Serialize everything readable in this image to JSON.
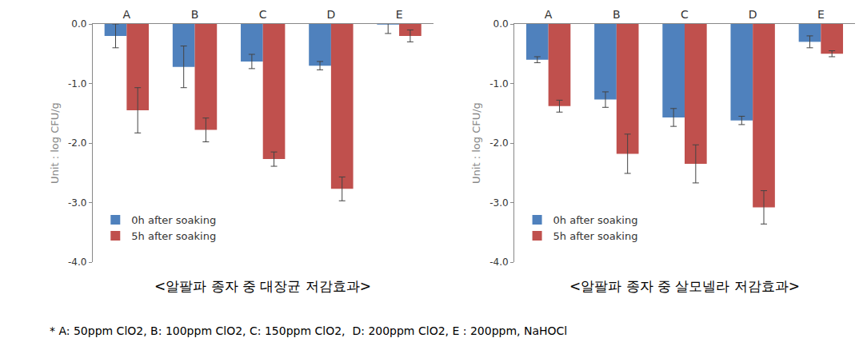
{
  "chart_data": [
    {
      "type": "bar",
      "title": "<알팔파 종자 중 대장균 저감효과>",
      "y_label": "Unit : log CFU/g",
      "categories": [
        "A",
        "B",
        "C",
        "D",
        "E"
      ],
      "series": [
        {
          "name": "0h after soaking",
          "color": "#4f81bd",
          "values": [
            -0.2,
            -0.72,
            -0.63,
            -0.7,
            -0.01
          ],
          "errors": [
            0.2,
            0.35,
            0.12,
            0.07,
            0.15
          ]
        },
        {
          "name": "5h after soaking",
          "color": "#c0504d",
          "values": [
            -1.45,
            -1.78,
            -2.27,
            -2.77,
            -0.2
          ],
          "errors": [
            0.38,
            0.2,
            0.12,
            0.2,
            0.1
          ]
        }
      ],
      "ylim": [
        -4,
        0
      ],
      "yticks": [
        {
          "value": -4,
          "label": "-4.0"
        },
        {
          "value": -3,
          "label": "-3.0"
        },
        {
          "value": -2,
          "label": "-2.0"
        },
        {
          "value": -1,
          "label": "-1.0"
        },
        {
          "value": 0,
          "label": "0.0"
        }
      ],
      "grid": false,
      "legend": "lower left"
    },
    {
      "type": "bar",
      "title": "<알팔파 종자 중 살모넬라 저감효과>",
      "y_label": "Unit : log CFU/g",
      "categories": [
        "A",
        "B",
        "C",
        "D",
        "E"
      ],
      "series": [
        {
          "name": "0h after soaking",
          "color": "#4f81bd",
          "values": [
            -0.6,
            -1.27,
            -1.57,
            -1.62,
            -0.3
          ],
          "errors": [
            0.05,
            0.13,
            0.15,
            0.07,
            0.1
          ]
        },
        {
          "name": "5h after soaking",
          "color": "#c0504d",
          "values": [
            -1.38,
            -2.18,
            -2.35,
            -3.08,
            -0.5
          ],
          "errors": [
            0.1,
            0.33,
            0.32,
            0.28,
            0.05
          ]
        }
      ],
      "ylim": [
        -4,
        0
      ],
      "yticks": [
        {
          "value": -4,
          "label": "-4.0"
        },
        {
          "value": -3,
          "label": "-3.0"
        },
        {
          "value": -2,
          "label": "-2.0"
        },
        {
          "value": -1,
          "label": "-1.0"
        },
        {
          "value": 0,
          "label": "0.0"
        }
      ],
      "grid": false,
      "legend": "lower left"
    }
  ],
  "footnote": "* A: 50ppm ClO2, B: 100ppm ClO2, C: 150ppm ClO2,  D: 200ppm ClO2, E : 200ppm, NaHOCl"
}
